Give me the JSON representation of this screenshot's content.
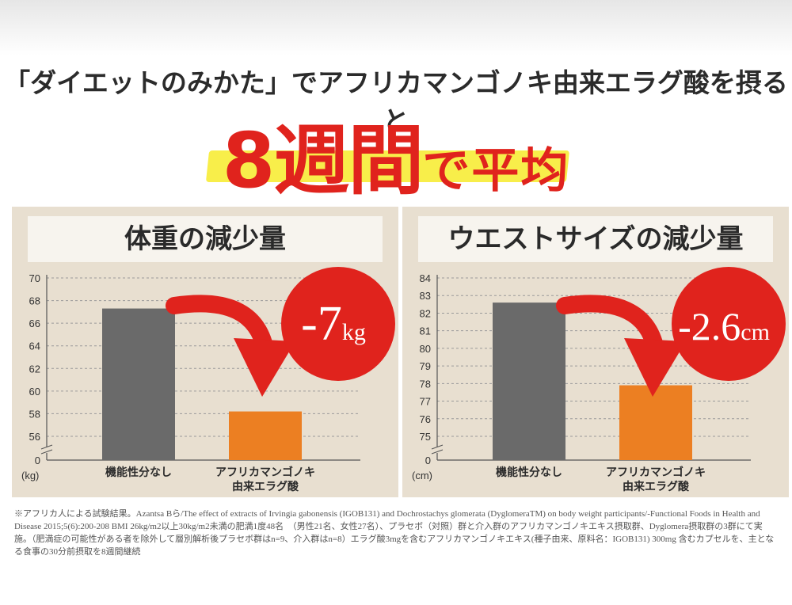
{
  "headline": "「ダイエットのみかた」でアフリカマンゴノキ由来エラグ酸を摂ると",
  "subheadline": {
    "number_part": "8週間",
    "text_part": "で平均"
  },
  "colors": {
    "accent_red": "#e0231d",
    "bar_gray": "#6a6a6a",
    "bar_orange": "#ec7f22",
    "panel_bg": "#e8dfd0",
    "highlight_yellow": "#f8ee4a"
  },
  "chart_data": [
    {
      "type": "bar",
      "title": "体重の減少量",
      "categories": [
        "機能性分なし",
        "アフリカマンゴノキ由来エラグ酸"
      ],
      "category_lines": [
        [
          "機能性分なし"
        ],
        [
          "アフリカマンゴノキ",
          "由来エラグ酸"
        ]
      ],
      "values": [
        67.3,
        58.2
      ],
      "ylabel": "(kg)",
      "yticks": [
        0,
        56,
        58,
        60,
        62,
        64,
        66,
        68,
        70
      ],
      "ylim_break": [
        0,
        55
      ],
      "ylim": [
        55,
        70
      ],
      "grid": true,
      "callout": {
        "value_text": "-7",
        "unit_text": "kg"
      }
    },
    {
      "type": "bar",
      "title": "ウエストサイズの減少量",
      "categories": [
        "機能性分なし",
        "アフリカマンゴノキ由来エラグ酸"
      ],
      "category_lines": [
        [
          "機能性分なし"
        ],
        [
          "アフリカマンゴノキ",
          "由来エラグ酸"
        ]
      ],
      "values": [
        82.6,
        77.9
      ],
      "ylabel": "(cm)",
      "yticks": [
        0,
        75,
        76,
        77,
        78,
        79,
        80,
        81,
        82,
        83,
        84
      ],
      "ylim_break": [
        0,
        74
      ],
      "ylim": [
        74,
        84
      ],
      "grid": true,
      "callout": {
        "value_text": "-2.6",
        "unit_text": "cm"
      }
    }
  ],
  "footnote": "※アフリカ人による試験結果。Azantsa Bら/The effect of extracts of Irvingia gabonensis (IGOB131) and Dochrostachys glomerata (DyglomeraTM) on body weight participants/-Functional Foods in Health and Disease 2015;5(6):200-208 BMI 26kg/m2以上30kg/m2未満の肥満1度48名　（男性21名、女性27名）、プラセボ（対照）群と介入群のアフリカマンゴノキエキス摂取群、Dyglomera摂取群の3群にて実施。（肥満症の可能性がある者を除外して層別解析後プラセボ群はn=9、介入群はn=8）エラグ酸3mgを含むアフリカマンゴノキエキス(種子由来、原料名：IGOB131) 300mg 含むカプセルを、主となる食事の30分前摂取を8週間継続"
}
